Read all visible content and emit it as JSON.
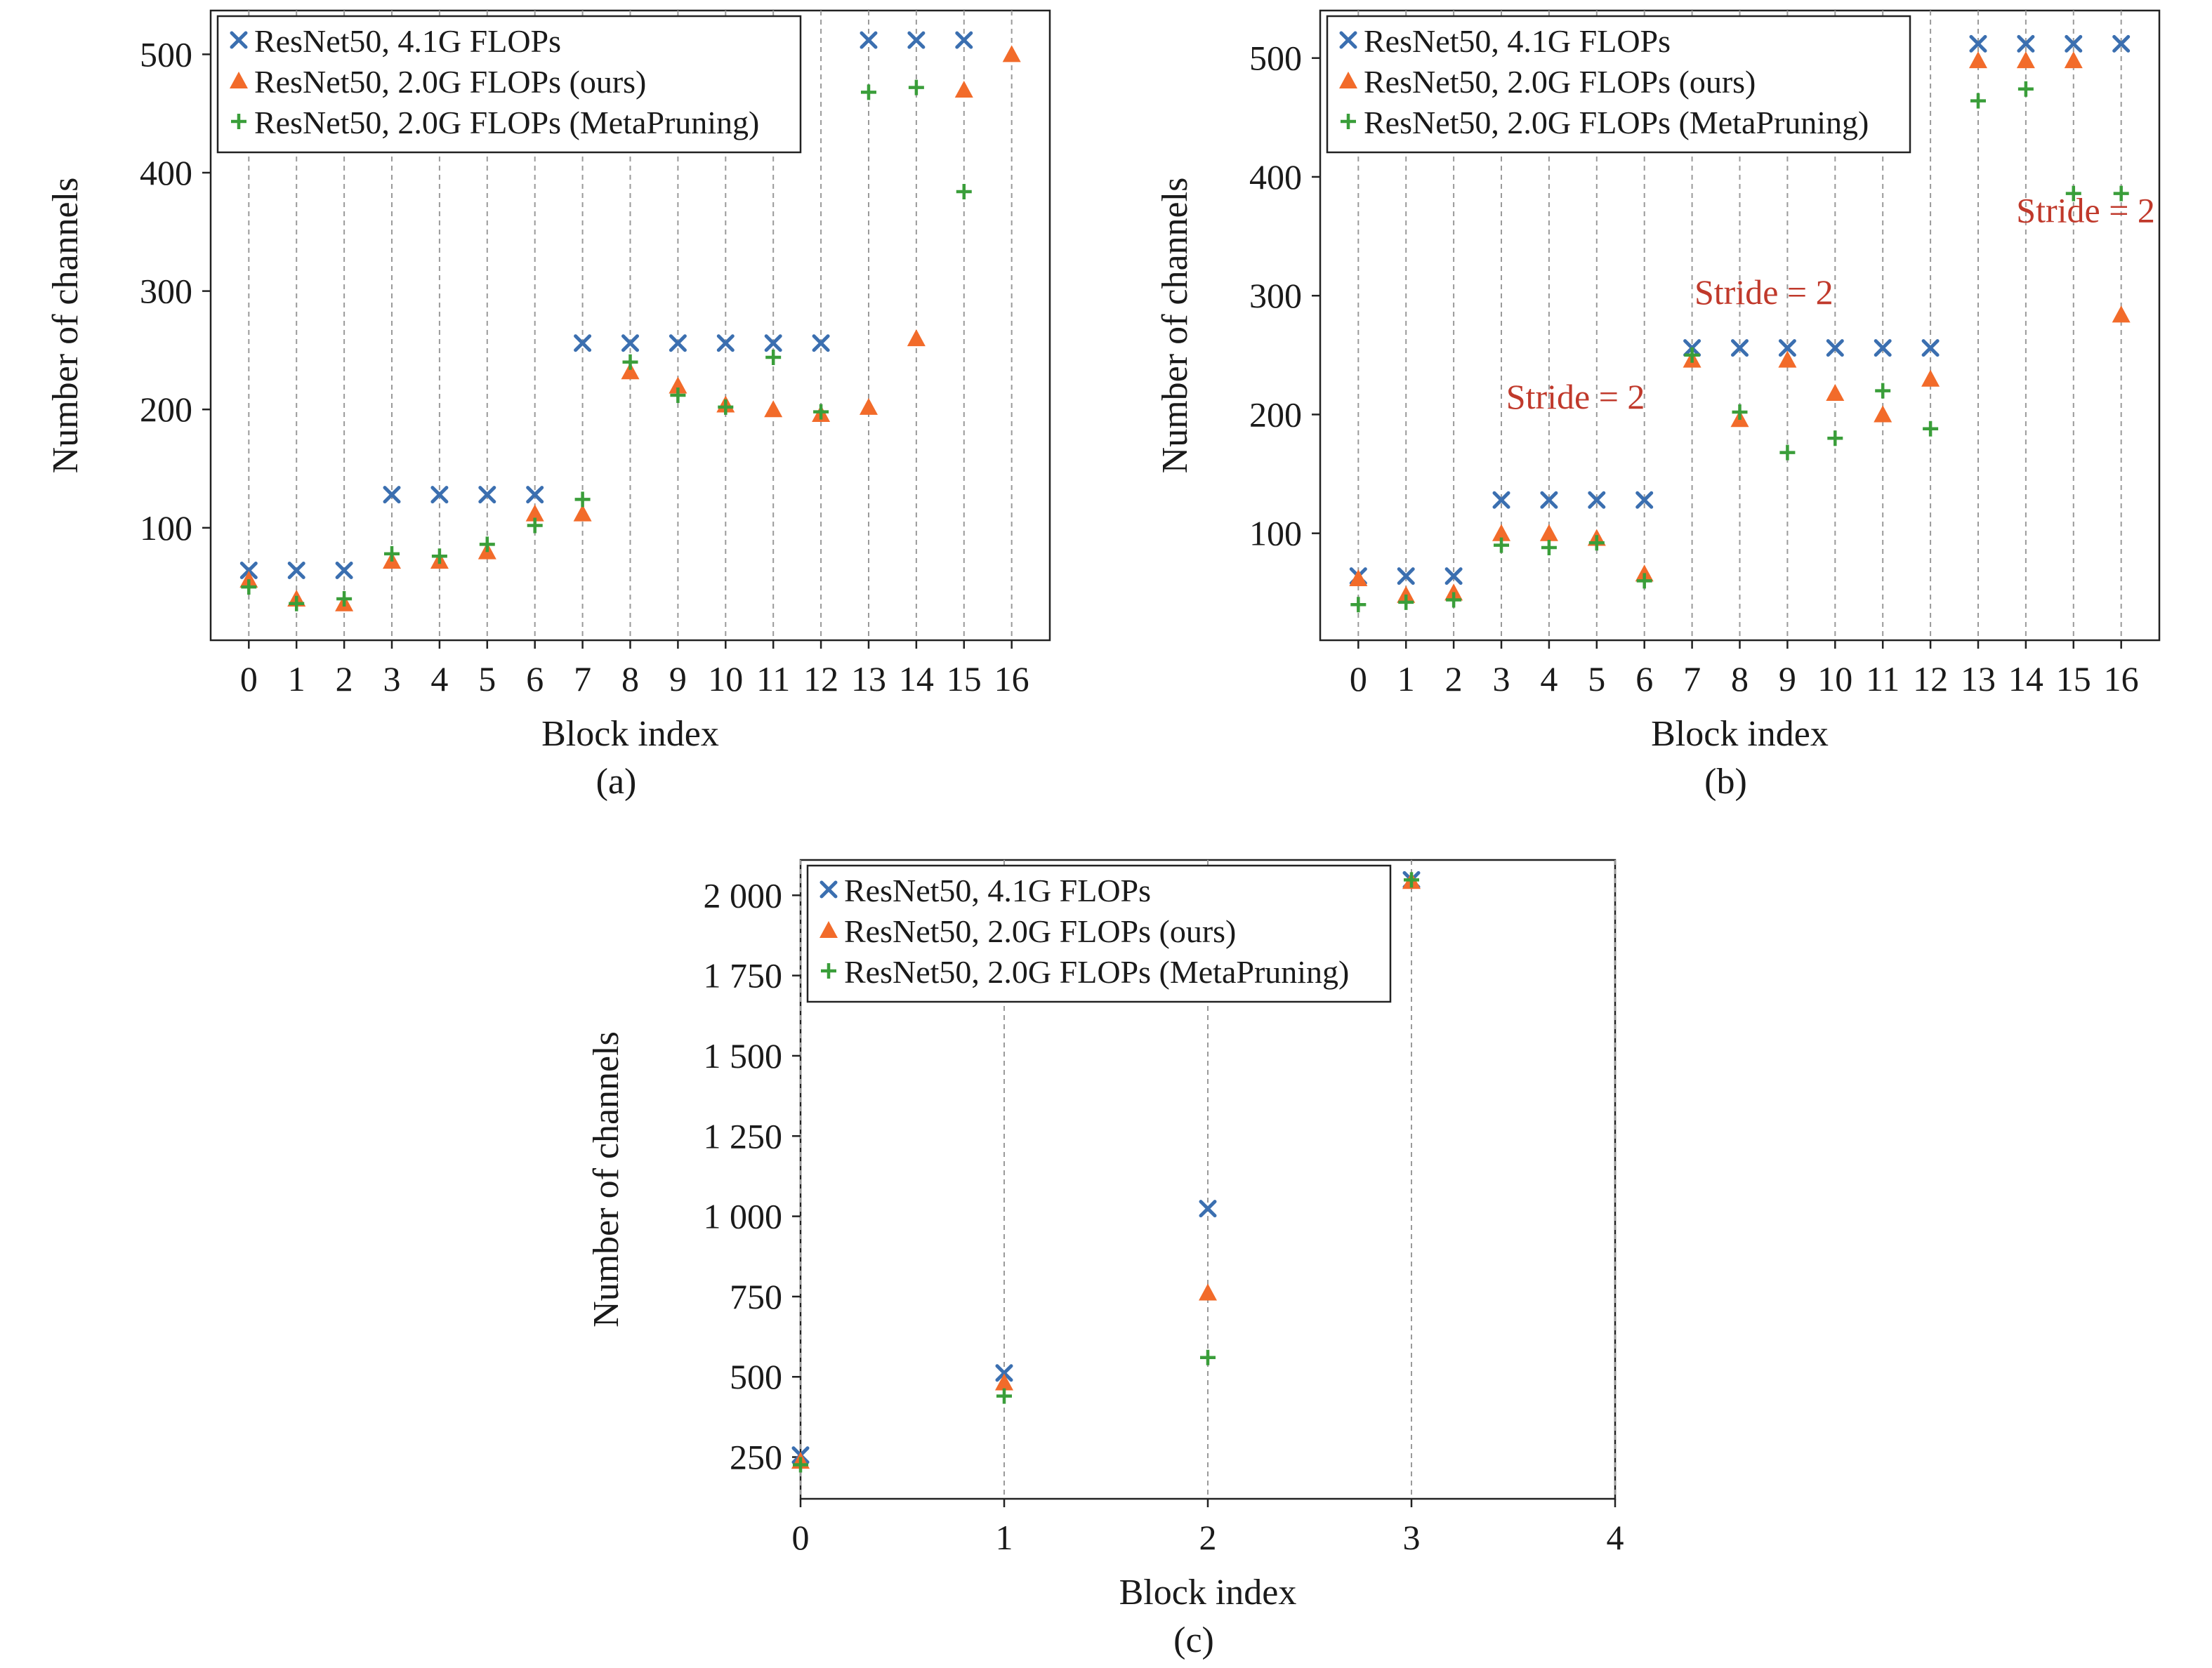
{
  "colors": {
    "series_x": "#3b6fb0",
    "series_tri": "#f26b2a",
    "series_plus": "#3a9e3a",
    "annotation": "#c0392b",
    "gridline": "#9a9a9a",
    "axis": "#222222"
  },
  "chart_data": [
    {
      "type": "scatter",
      "caption": "(a)",
      "xlabel": "Block index",
      "ylabel": "Number of channels",
      "xlim": [
        -0.8,
        16.8
      ],
      "ylim": [
        5,
        537
      ],
      "xticks": [
        0,
        1,
        2,
        3,
        4,
        5,
        6,
        7,
        8,
        9,
        10,
        11,
        12,
        13,
        14,
        15,
        16
      ],
      "xtick_labels": [
        "0",
        "1",
        "2",
        "3",
        "4",
        "5",
        "6",
        "7",
        "8",
        "9",
        "10",
        "11",
        "12",
        "13",
        "14",
        "15",
        "16"
      ],
      "yticks": [
        100,
        200,
        300,
        400,
        500
      ],
      "ytick_labels": [
        "100",
        "200",
        "300",
        "400",
        "500"
      ],
      "grid": "vertical-dashed",
      "legend_position": "top-left",
      "annotations": [],
      "series": [
        {
          "name": "ResNet50, 4.1G FLOPs",
          "marker": "x",
          "x": [
            0,
            1,
            2,
            3,
            4,
            5,
            6,
            7,
            8,
            9,
            10,
            11,
            12,
            13,
            14,
            15
          ],
          "y": [
            64,
            64,
            64,
            128,
            128,
            128,
            128,
            256,
            256,
            256,
            256,
            256,
            256,
            512,
            512,
            512
          ]
        },
        {
          "name": "ResNet50, 2.0G FLOPs (ours)",
          "marker": "triangle",
          "x": [
            0,
            1,
            2,
            3,
            4,
            5,
            6,
            7,
            8,
            9,
            10,
            11,
            12,
            13,
            14,
            15,
            16
          ],
          "y": [
            56,
            40,
            36,
            72,
            72,
            80,
            112,
            112,
            232,
            220,
            204,
            200,
            196,
            202,
            260,
            470,
            500
          ]
        },
        {
          "name": "ResNet50, 2.0G FLOPs (MetaPruning)",
          "marker": "plus",
          "x": [
            0,
            1,
            2,
            3,
            4,
            5,
            6,
            7,
            8,
            9,
            10,
            11,
            12,
            13,
            14,
            15
          ],
          "y": [
            50,
            36,
            40,
            78,
            76,
            86,
            102,
            124,
            240,
            212,
            202,
            244,
            198,
            468,
            472,
            384
          ]
        }
      ]
    },
    {
      "type": "scatter",
      "caption": "(b)",
      "xlabel": "Block index",
      "ylabel": "Number of channels",
      "xlim": [
        -0.8,
        16.8
      ],
      "ylim": [
        10,
        540
      ],
      "xticks": [
        0,
        1,
        2,
        3,
        4,
        5,
        6,
        7,
        8,
        9,
        10,
        11,
        12,
        13,
        14,
        15,
        16
      ],
      "xtick_labels": [
        "0",
        "1",
        "2",
        "3",
        "4",
        "5",
        "6",
        "7",
        "8",
        "9",
        "10",
        "11",
        "12",
        "13",
        "14",
        "15",
        "16"
      ],
      "yticks": [
        100,
        200,
        300,
        400,
        500
      ],
      "ytick_labels": [
        "100",
        "200",
        "300",
        "400",
        "500"
      ],
      "grid": "vertical-dashed",
      "legend_position": "top-left",
      "annotations": [
        {
          "text": "Stride = 2",
          "x": 3.1,
          "y": 205
        },
        {
          "text": "Stride = 2",
          "x": 7.05,
          "y": 293
        },
        {
          "text": "Stride = 2",
          "x": 13.8,
          "y": 362
        }
      ],
      "series": [
        {
          "name": "ResNet50, 4.1G FLOPs",
          "marker": "x",
          "x": [
            0,
            1,
            2,
            3,
            4,
            5,
            6,
            7,
            8,
            9,
            10,
            11,
            12,
            13,
            14,
            15,
            16
          ],
          "y": [
            64,
            64,
            64,
            128,
            128,
            128,
            128,
            256,
            256,
            256,
            256,
            256,
            256,
            512,
            512,
            512,
            512
          ]
        },
        {
          "name": "ResNet50, 2.0G FLOPs (ours)",
          "marker": "triangle",
          "x": [
            0,
            1,
            2,
            3,
            4,
            5,
            6,
            7,
            8,
            9,
            10,
            11,
            12,
            13,
            14,
            15,
            16
          ],
          "y": [
            62,
            48,
            50,
            100,
            100,
            96,
            66,
            246,
            196,
            246,
            218,
            200,
            230,
            498,
            498,
            498,
            284
          ]
        },
        {
          "name": "ResNet50, 2.0G FLOPs (MetaPruning)",
          "marker": "plus",
          "x": [
            0,
            1,
            2,
            3,
            4,
            5,
            6,
            7,
            8,
            9,
            10,
            11,
            12,
            13,
            14,
            15,
            16
          ],
          "y": [
            40,
            42,
            44,
            90,
            88,
            92,
            60,
            250,
            202,
            168,
            180,
            220,
            188,
            464,
            474,
            386,
            386
          ]
        }
      ]
    },
    {
      "type": "scatter",
      "caption": "(c)",
      "xlabel": "Block index",
      "ylabel": "Number of channels",
      "xlim": [
        0,
        4
      ],
      "ylim": [
        120,
        2110
      ],
      "xticks": [
        0,
        1,
        2,
        3,
        4
      ],
      "xtick_labels": [
        "0",
        "1",
        "2",
        "3",
        "4"
      ],
      "yticks": [
        250,
        500,
        750,
        1000,
        1250,
        1500,
        1750,
        2000
      ],
      "ytick_labels": [
        "250",
        "500",
        "750",
        "1 000",
        "1 250",
        "1 500",
        "1 750",
        "2 000"
      ],
      "grid": "vertical-dashed",
      "legend_position": "top-left",
      "annotations": [],
      "series": [
        {
          "name": "ResNet50, 4.1G FLOPs",
          "marker": "x",
          "x": [
            0,
            1,
            2,
            3
          ],
          "y": [
            256,
            512,
            1024,
            2048
          ]
        },
        {
          "name": "ResNet50, 2.0G FLOPs (ours)",
          "marker": "triangle",
          "x": [
            0,
            1,
            2,
            3
          ],
          "y": [
            238,
            482,
            762,
            2044
          ]
        },
        {
          "name": "ResNet50, 2.0G FLOPs (MetaPruning)",
          "marker": "plus",
          "x": [
            0,
            1,
            2,
            3
          ],
          "y": [
            226,
            440,
            560,
            2048
          ]
        }
      ]
    }
  ]
}
